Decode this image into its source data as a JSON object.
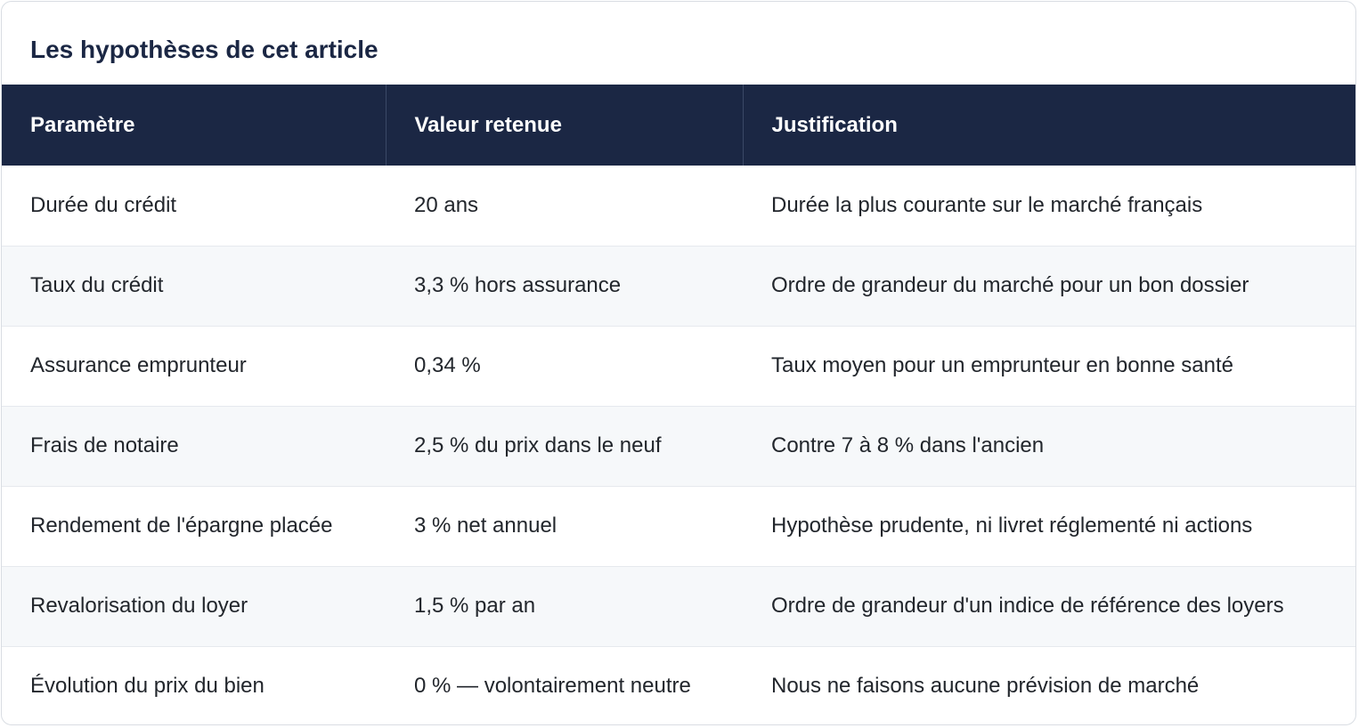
{
  "title": "Les hypothèses de cet article",
  "table": {
    "headers": [
      "Paramètre",
      "Valeur retenue",
      "Justification"
    ],
    "rows": [
      [
        "Durée du crédit",
        "20 ans",
        "Durée la plus courante sur le marché français"
      ],
      [
        "Taux du crédit",
        "3,3 % hors assurance",
        "Ordre de grandeur du marché pour un bon dossier"
      ],
      [
        "Assurance emprunteur",
        "0,34 %",
        "Taux moyen pour un emprunteur en bonne santé"
      ],
      [
        "Frais de notaire",
        "2,5 % du prix dans le neuf",
        "Contre 7 à 8 % dans l'ancien"
      ],
      [
        "Rendement de l'épargne placée",
        "3 % net annuel",
        "Hypothèse prudente, ni livret réglementé ni actions"
      ],
      [
        "Revalorisation du loyer",
        "1,5 % par an",
        "Ordre de grandeur d'un indice de référence des loyers"
      ],
      [
        "Évolution du prix du bien",
        "0 % — volontairement neutre",
        "Nous ne faisons aucune prévision de marché"
      ]
    ]
  },
  "colors": {
    "header_bg": "#1b2744",
    "title_text": "#1b2744",
    "row_alt_bg": "#f6f8fa"
  }
}
